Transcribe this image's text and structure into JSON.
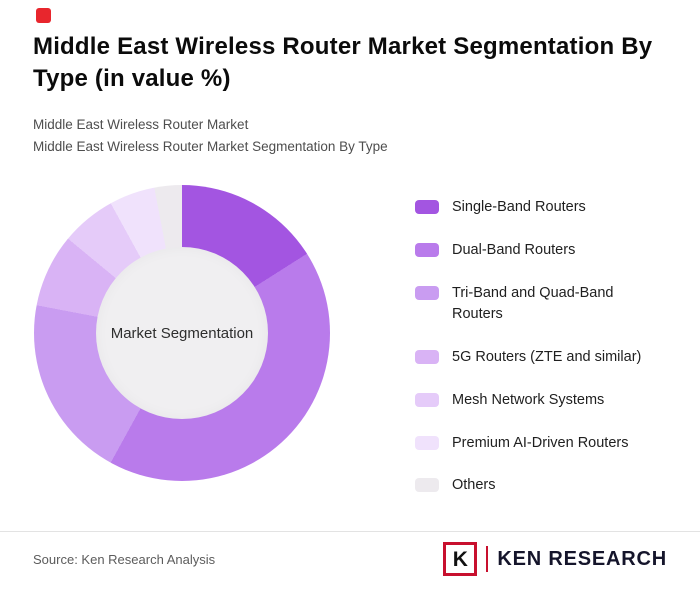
{
  "header": {
    "title": "Middle East Wireless Router Market Segmentation By Type (in value %)",
    "subtitle1": "Middle East Wireless Router Market",
    "subtitle2": "Middle East Wireless Router Market Segmentation By Type"
  },
  "chart_data": {
    "type": "pie",
    "donut": true,
    "title": "Middle East Wireless Router Market Segmentation By Type (in value %)",
    "center_label": "Market Segmentation",
    "legend_position": "right",
    "start_angle_deg": 0,
    "direction": "clockwise",
    "series": [
      {
        "name": "Single-Band Routers",
        "value": 16,
        "color": "#A355E1"
      },
      {
        "name": "Dual-Band Routers",
        "value": 42,
        "color": "#B97BEB"
      },
      {
        "name": "Tri-Band and Quad-Band Routers",
        "value": 20,
        "color": "#C99CF1"
      },
      {
        "name": "5G Routers (ZTE and similar)",
        "value": 8,
        "color": "#D9B3F5"
      },
      {
        "name": "Mesh Network Systems",
        "value": 6,
        "color": "#E5CBF9"
      },
      {
        "name": "Premium AI-Driven Routers",
        "value": 5,
        "color": "#F0E2FC"
      },
      {
        "name": "Others",
        "value": 3,
        "color": "#EDEAEE"
      }
    ]
  },
  "footer": {
    "source": "Source: Ken Research Analysis",
    "logo_k": "K",
    "logo_text": "KEN RESEARCH"
  },
  "colors": {
    "brand_red": "#E8262D",
    "logo_red": "#C8102E",
    "donut_center_bg": "#F0EFF1",
    "divider": "#E3E3E3"
  }
}
